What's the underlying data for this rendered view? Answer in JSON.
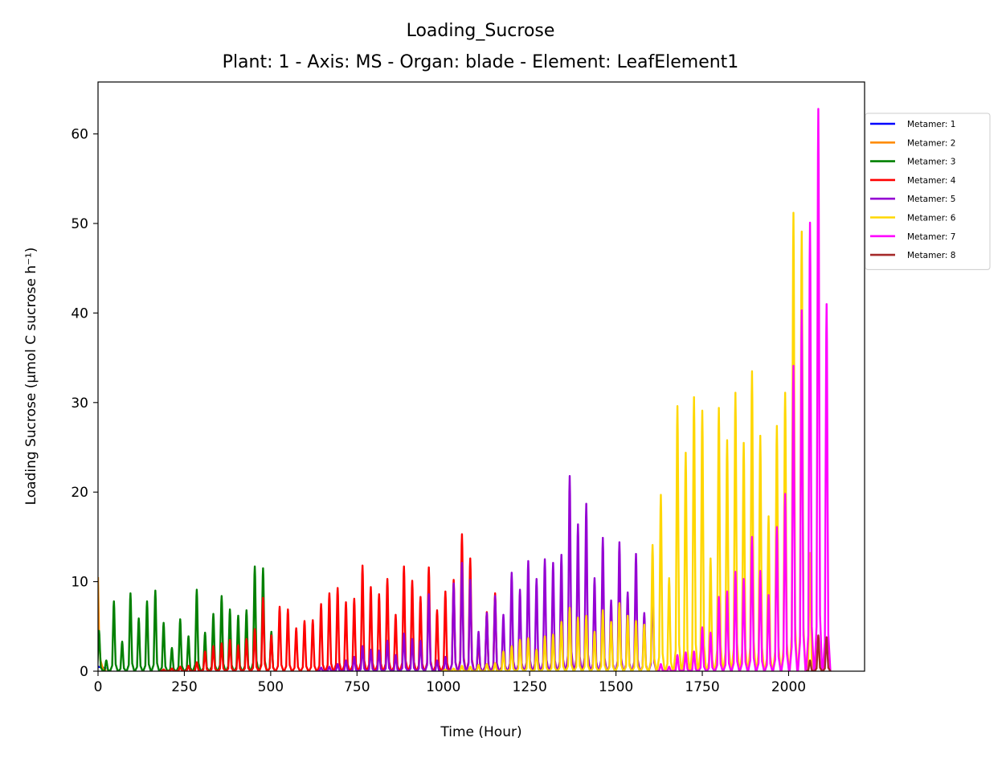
{
  "chart_data": {
    "type": "line",
    "title": "Loading_Sucrose",
    "subtitle": "Plant: 1 - Axis: MS - Organ: blade - Element: LeafElement1",
    "xlabel": "Time (Hour)",
    "ylabel": "Loading Sucrose (µmol C sucrose h⁻¹)",
    "xlim": [
      0,
      2220
    ],
    "ylim": [
      0,
      65.8
    ],
    "x_ticks": [
      0,
      250,
      500,
      750,
      1000,
      1250,
      1500,
      1750,
      2000
    ],
    "x_tick_labels": [
      "0",
      "250",
      "500",
      "750",
      "1000",
      "1250",
      "1500",
      "1750",
      "2000"
    ],
    "y_ticks": [
      0,
      10,
      20,
      30,
      40,
      50,
      60
    ],
    "y_tick_labels": [
      "0",
      "10",
      "20",
      "30",
      "40",
      "50",
      "60"
    ],
    "grid": false,
    "legend_position": "outside-right-top",
    "series": [
      {
        "name": "Metamer: 1",
        "color": "#0000ff",
        "values": [
          [
            0,
            0.5
          ],
          [
            24,
            0.3
          ]
        ]
      },
      {
        "name": "Metamer: 2",
        "color": "#ff8c00",
        "values": [
          [
            0,
            10.5
          ],
          [
            3,
            4.0
          ],
          [
            7,
            1.2
          ],
          [
            14,
            0.3
          ],
          [
            24,
            0.1
          ]
        ]
      },
      {
        "name": "Metamer: 3",
        "color": "#008000",
        "peaks": [
          [
            3,
            4.5
          ],
          [
            24,
            1.2
          ],
          [
            46,
            7.8
          ],
          [
            70,
            3.3
          ],
          [
            94,
            8.7
          ],
          [
            118,
            5.9
          ],
          [
            142,
            7.8
          ],
          [
            166,
            9.0
          ],
          [
            190,
            5.4
          ],
          [
            214,
            2.6
          ],
          [
            238,
            5.8
          ],
          [
            262,
            3.9
          ],
          [
            286,
            9.1
          ],
          [
            310,
            4.3
          ],
          [
            334,
            6.4
          ],
          [
            358,
            8.4
          ],
          [
            382,
            6.9
          ],
          [
            406,
            6.2
          ],
          [
            430,
            6.8
          ],
          [
            454,
            11.7
          ],
          [
            478,
            11.5
          ],
          [
            502,
            4.4
          ]
        ]
      },
      {
        "name": "Metamer: 4",
        "color": "#ff0000",
        "peaks": [
          [
            190,
            0.2
          ],
          [
            214,
            0.3
          ],
          [
            238,
            0.5
          ],
          [
            262,
            0.6
          ],
          [
            286,
            1.0
          ],
          [
            310,
            2.2
          ],
          [
            334,
            2.8
          ],
          [
            358,
            3.1
          ],
          [
            382,
            3.5
          ],
          [
            406,
            2.9
          ],
          [
            430,
            3.6
          ],
          [
            454,
            4.7
          ],
          [
            478,
            8.2
          ],
          [
            502,
            4.0
          ],
          [
            526,
            7.2
          ],
          [
            550,
            6.9
          ],
          [
            574,
            4.8
          ],
          [
            598,
            5.6
          ],
          [
            622,
            5.7
          ],
          [
            646,
            7.5
          ],
          [
            670,
            8.7
          ],
          [
            694,
            9.3
          ],
          [
            718,
            7.7
          ],
          [
            742,
            8.1
          ],
          [
            766,
            11.8
          ],
          [
            790,
            9.4
          ],
          [
            814,
            8.6
          ],
          [
            838,
            10.3
          ],
          [
            862,
            6.3
          ],
          [
            886,
            11.7
          ],
          [
            910,
            10.1
          ],
          [
            934,
            8.3
          ],
          [
            958,
            11.6
          ],
          [
            982,
            6.8
          ],
          [
            1006,
            8.9
          ],
          [
            1030,
            10.2
          ],
          [
            1054,
            15.3
          ],
          [
            1078,
            12.6
          ],
          [
            1102,
            3.8
          ],
          [
            1126,
            6.6
          ],
          [
            1150,
            8.7
          ]
        ]
      },
      {
        "name": "Metamer: 5",
        "color": "#9400d3",
        "peaks": [
          [
            646,
            0.4
          ],
          [
            670,
            0.5
          ],
          [
            694,
            0.8
          ],
          [
            718,
            1.2
          ],
          [
            742,
            1.6
          ],
          [
            766,
            2.8
          ],
          [
            790,
            2.4
          ],
          [
            814,
            2.3
          ],
          [
            838,
            3.4
          ],
          [
            862,
            1.8
          ],
          [
            886,
            4.2
          ],
          [
            910,
            3.6
          ],
          [
            934,
            3.4
          ],
          [
            958,
            8.6
          ],
          [
            982,
            1.2
          ],
          [
            1006,
            1.6
          ],
          [
            1030,
            9.8
          ],
          [
            1054,
            12.1
          ],
          [
            1078,
            10.2
          ],
          [
            1102,
            4.4
          ],
          [
            1126,
            6.5
          ],
          [
            1150,
            8.4
          ],
          [
            1174,
            6.3
          ],
          [
            1198,
            11.0
          ],
          [
            1222,
            9.1
          ],
          [
            1246,
            12.3
          ],
          [
            1270,
            10.3
          ],
          [
            1294,
            12.5
          ],
          [
            1318,
            12.1
          ],
          [
            1342,
            13.0
          ],
          [
            1366,
            21.8
          ],
          [
            1390,
            16.4
          ],
          [
            1414,
            18.7
          ],
          [
            1438,
            10.4
          ],
          [
            1462,
            14.9
          ],
          [
            1486,
            7.9
          ],
          [
            1510,
            14.4
          ],
          [
            1534,
            8.8
          ],
          [
            1558,
            13.1
          ],
          [
            1582,
            6.5
          ],
          [
            1606,
            9.8
          ]
        ]
      },
      {
        "name": "Metamer: 6",
        "color": "#ffd700",
        "peaks": [
          [
            1006,
            0.2
          ],
          [
            1030,
            0.3
          ],
          [
            1054,
            0.6
          ],
          [
            1078,
            0.5
          ],
          [
            1102,
            0.7
          ],
          [
            1126,
            0.8
          ],
          [
            1150,
            0.9
          ],
          [
            1174,
            2.2
          ],
          [
            1198,
            2.8
          ],
          [
            1222,
            3.5
          ],
          [
            1246,
            3.7
          ],
          [
            1270,
            2.4
          ],
          [
            1294,
            3.9
          ],
          [
            1318,
            4.1
          ],
          [
            1342,
            5.5
          ],
          [
            1366,
            7.1
          ],
          [
            1390,
            6.0
          ],
          [
            1414,
            6.2
          ],
          [
            1438,
            4.4
          ],
          [
            1462,
            6.8
          ],
          [
            1486,
            5.5
          ],
          [
            1510,
            7.6
          ],
          [
            1534,
            6.2
          ],
          [
            1558,
            5.6
          ],
          [
            1582,
            5.2
          ],
          [
            1606,
            14.1
          ],
          [
            1630,
            19.7
          ],
          [
            1654,
            10.4
          ],
          [
            1678,
            29.6
          ],
          [
            1702,
            24.4
          ],
          [
            1726,
            30.6
          ],
          [
            1750,
            29.1
          ],
          [
            1774,
            12.6
          ],
          [
            1798,
            29.4
          ],
          [
            1822,
            25.8
          ],
          [
            1846,
            31.1
          ],
          [
            1870,
            25.5
          ],
          [
            1894,
            33.5
          ],
          [
            1918,
            26.3
          ],
          [
            1942,
            17.3
          ],
          [
            1966,
            27.4
          ],
          [
            1990,
            31.1
          ],
          [
            2014,
            51.2
          ],
          [
            2038,
            49.1
          ],
          [
            2062,
            13.2
          ],
          [
            2086,
            3.8
          ]
        ]
      },
      {
        "name": "Metamer: 7",
        "color": "#ff00ff",
        "peaks": [
          [
            1630,
            0.8
          ],
          [
            1654,
            0.5
          ],
          [
            1678,
            1.8
          ],
          [
            1702,
            2.1
          ],
          [
            1726,
            2.2
          ],
          [
            1750,
            4.9
          ],
          [
            1774,
            4.3
          ],
          [
            1798,
            8.3
          ],
          [
            1822,
            8.9
          ],
          [
            1846,
            11.1
          ],
          [
            1870,
            10.3
          ],
          [
            1894,
            15.0
          ],
          [
            1918,
            11.2
          ],
          [
            1942,
            8.5
          ],
          [
            1966,
            16.1
          ],
          [
            1990,
            19.8
          ],
          [
            2014,
            34.1
          ],
          [
            2038,
            40.3
          ],
          [
            2062,
            50.1
          ],
          [
            2086,
            62.8
          ],
          [
            2110,
            41.0
          ]
        ]
      },
      {
        "name": "Metamer: 8",
        "color": "#a52a2a",
        "peaks": [
          [
            2062,
            1.2
          ],
          [
            2086,
            4.0
          ],
          [
            2110,
            3.8
          ]
        ]
      }
    ]
  }
}
